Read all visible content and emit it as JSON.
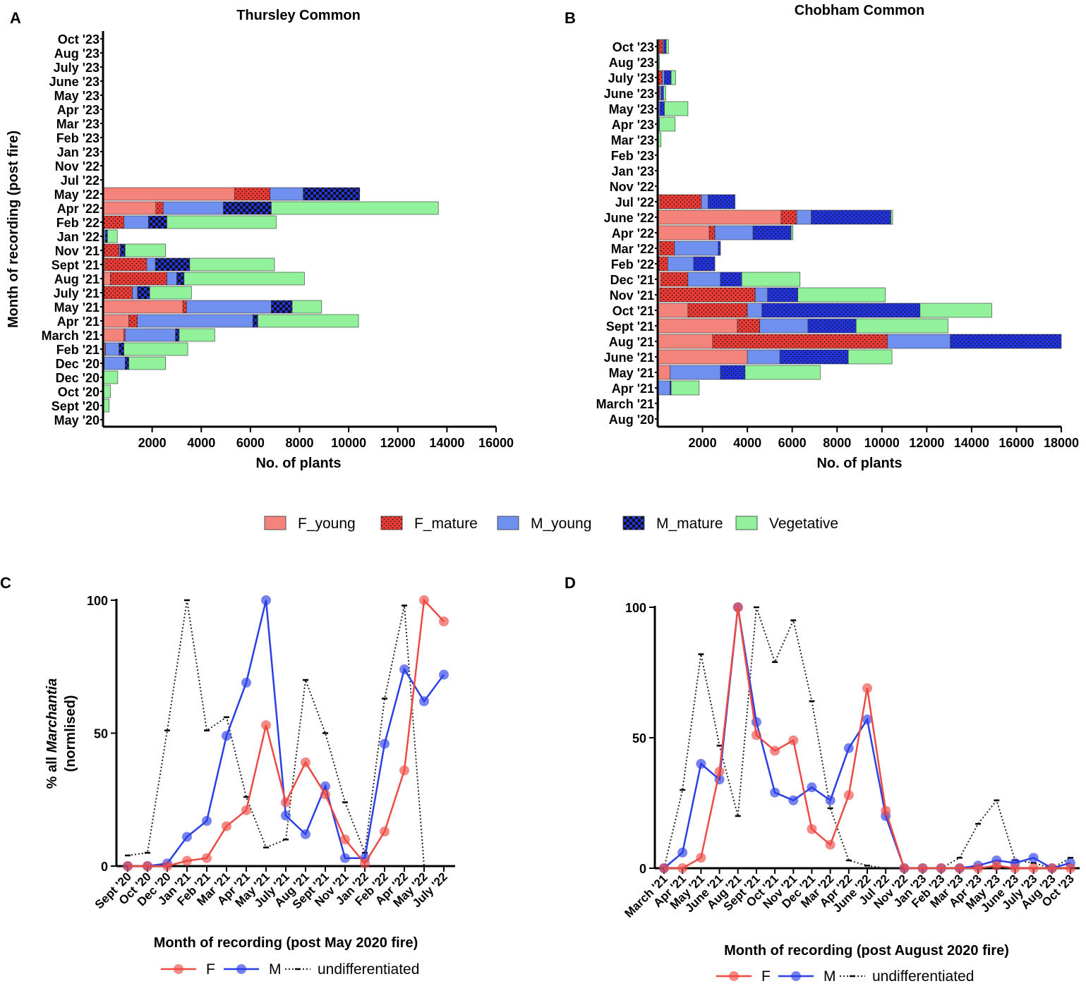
{
  "colors": {
    "F_young": "#f4837c",
    "F_mature": "#ef3b36",
    "M_young": "#7090f0",
    "M_mature": "#2233dd",
    "Vegetative": "#92f29b",
    "F_line": "#ee4a44",
    "M_line": "#2b3fe6",
    "undiff_line": "#222222"
  },
  "legend_bars": [
    "F_young",
    "F_mature",
    "M_young",
    "M_mature",
    "Vegetative"
  ],
  "chart_data": [
    {
      "id": "A",
      "panel_label": "A",
      "type": "bar",
      "orientation": "horizontal",
      "stacked": true,
      "title": "Thursley Common",
      "xlabel": "No. of plants",
      "ylabel": "Month of recording (post fire)",
      "xlim": [
        0,
        16000
      ],
      "xticks": [
        2000,
        4000,
        6000,
        8000,
        10000,
        12000,
        14000,
        16000
      ],
      "categories": [
        "May '20",
        "Sept '20",
        "Oct '20",
        "Dec '20",
        "Dec '20",
        "Feb '21",
        "March '21",
        "Apr '21",
        "May '21",
        "July '21",
        "Aug '21",
        "Sept '21",
        "Nov '21",
        "Jan '22",
        "Feb '22",
        "Apr '22",
        "May '22",
        "Jul '22",
        "Nov '22",
        "Jan '23",
        "Feb '23",
        "Mar '23",
        "Apr '23",
        "May '23",
        "June '23",
        "July '23",
        "Aug '23",
        "Oct '23"
      ],
      "series": [
        {
          "name": "F_young",
          "values": [
            0,
            0,
            0,
            0,
            50,
            80,
            850,
            1050,
            3250,
            50,
            300,
            80,
            50,
            20,
            0,
            2150,
            5350,
            0,
            0,
            0,
            0,
            0,
            0,
            0,
            0,
            0,
            0,
            0
          ]
        },
        {
          "name": "F_mature",
          "values": [
            0,
            0,
            0,
            0,
            0,
            20,
            50,
            350,
            150,
            1150,
            2300,
            1700,
            600,
            0,
            850,
            300,
            1450,
            0,
            0,
            0,
            0,
            0,
            0,
            0,
            0,
            0,
            0,
            0
          ]
        },
        {
          "name": "M_young",
          "values": [
            0,
            0,
            0,
            0,
            850,
            550,
            2050,
            4700,
            3450,
            200,
            400,
            350,
            50,
            80,
            1000,
            2450,
            1350,
            0,
            0,
            0,
            0,
            0,
            0,
            0,
            0,
            0,
            0,
            0
          ]
        },
        {
          "name": "M_mature",
          "values": [
            0,
            0,
            0,
            0,
            150,
            200,
            150,
            200,
            850,
            500,
            300,
            1400,
            200,
            80,
            750,
            1950,
            2300,
            0,
            0,
            0,
            0,
            0,
            0,
            0,
            0,
            0,
            0,
            0
          ]
        },
        {
          "name": "Vegetative",
          "values": [
            0,
            250,
            300,
            600,
            1500,
            2600,
            1450,
            4100,
            1200,
            1700,
            4900,
            3450,
            1650,
            400,
            4450,
            6800,
            0,
            0,
            0,
            0,
            0,
            0,
            0,
            0,
            0,
            0,
            0,
            0
          ]
        }
      ]
    },
    {
      "id": "B",
      "panel_label": "B",
      "type": "bar",
      "orientation": "horizontal",
      "stacked": true,
      "title": "Chobham Common",
      "xlabel": "No. of plants",
      "ylabel": "",
      "xlim": [
        0,
        18000
      ],
      "xticks": [
        2000,
        4000,
        6000,
        8000,
        10000,
        12000,
        14000,
        16000,
        18000
      ],
      "categories": [
        "Aug '20",
        "March '21",
        "Apr '21",
        "May '21",
        "June '21",
        "Aug '21",
        "Sept '21",
        "Oct '21",
        "Nov '21",
        "Dec '21",
        "Feb '22",
        "Mar '22",
        "Apr '22",
        "June '22",
        "Jul '22",
        "Nov '22",
        "Jan '23",
        "Feb '23",
        "Mar '23",
        "Apr '23",
        "May '23",
        "June '23",
        "July '23",
        "Aug '23",
        "Oct '23"
      ],
      "series": [
        {
          "name": "F_young",
          "values": [
            0,
            0,
            0,
            550,
            4000,
            2450,
            3550,
            1350,
            100,
            150,
            50,
            100,
            2300,
            5500,
            100,
            0,
            0,
            0,
            0,
            0,
            0,
            0,
            0,
            0,
            80
          ]
        },
        {
          "name": "F_mature",
          "values": [
            0,
            0,
            0,
            0,
            0,
            7800,
            1000,
            2650,
            4250,
            1200,
            400,
            650,
            250,
            700,
            1850,
            0,
            0,
            0,
            0,
            0,
            0,
            80,
            200,
            0,
            150
          ]
        },
        {
          "name": "M_young",
          "values": [
            0,
            0,
            550,
            2250,
            1450,
            2800,
            2150,
            650,
            550,
            1450,
            1150,
            1950,
            1700,
            650,
            300,
            0,
            0,
            0,
            0,
            80,
            100,
            80,
            100,
            30,
            50
          ]
        },
        {
          "name": "M_mature",
          "values": [
            0,
            50,
            50,
            1100,
            3050,
            4950,
            2150,
            7050,
            1350,
            950,
            950,
            100,
            1700,
            3550,
            1200,
            0,
            0,
            0,
            0,
            0,
            200,
            100,
            300,
            0,
            100
          ]
        },
        {
          "name": "Vegetative",
          "values": [
            0,
            0,
            1250,
            3350,
            1950,
            0,
            4100,
            3200,
            3900,
            2600,
            0,
            0,
            80,
            80,
            0,
            0,
            0,
            0,
            150,
            700,
            1050,
            100,
            200,
            50,
            100
          ]
        }
      ]
    },
    {
      "id": "C",
      "panel_label": "C",
      "type": "line",
      "title": "",
      "xlabel": "Month of recording (post May 2020 fire)",
      "ylabel_prefix": "% all ",
      "ylabel_italic": "Marchantia",
      "ylabel_line2": "(normlised)",
      "ylim": [
        0,
        100
      ],
      "yticks": [
        0,
        50,
        100
      ],
      "x": [
        "Sept '20",
        "Oct '20",
        "Dec '20",
        "Jan '21",
        "Feb '21",
        "Mar '21",
        "Apr '21",
        "May '21",
        "July '21",
        "Aug '21",
        "Sept '21",
        "Nov '21",
        "Jan '22",
        "Feb '22",
        "Apr '22",
        "May '22",
        "July '22"
      ],
      "series": [
        {
          "name": "F",
          "values": [
            0,
            0,
            0,
            2,
            3,
            15,
            21,
            53,
            24,
            39,
            27,
            10,
            1,
            13,
            36,
            100,
            92
          ]
        },
        {
          "name": "M",
          "values": [
            0,
            0,
            1,
            11,
            17,
            49,
            69,
            100,
            19,
            12,
            30,
            3,
            3,
            46,
            74,
            62,
            72
          ]
        },
        {
          "name": "undifferentiated",
          "values": [
            4,
            5,
            51,
            100,
            51,
            56,
            26,
            7,
            10,
            70,
            50,
            24,
            5,
            63,
            98,
            0,
            null
          ]
        }
      ]
    },
    {
      "id": "D",
      "panel_label": "D",
      "type": "line",
      "title": "",
      "xlabel": "Month of recording (post August 2020 fire)",
      "ylim": [
        0,
        100
      ],
      "yticks": [
        0,
        50,
        100
      ],
      "x": [
        "March '21",
        "Apr '21",
        "May '21",
        "June '21",
        "Aug '21",
        "Sept '21",
        "Oct '21",
        "Nov '21",
        "Dec '21",
        "Mar '22",
        "Apr '22",
        "June '22",
        "Jul '22",
        "Nov '22",
        "Jan '23",
        "Feb '23",
        "Mar '23",
        "Apr '23",
        "May '23",
        "June '23",
        "July '23",
        "Aug '23",
        "Oct '23"
      ],
      "series": [
        {
          "name": "F",
          "values": [
            0,
            0,
            4,
            37,
            100,
            51,
            45,
            49,
            15,
            9,
            28,
            69,
            22,
            0,
            0,
            0,
            0,
            0,
            1,
            0,
            0,
            0,
            0
          ]
        },
        {
          "name": "M",
          "values": [
            0,
            6,
            40,
            34,
            100,
            56,
            29,
            26,
            31,
            26,
            46,
            57,
            20,
            0,
            0,
            0,
            0,
            1,
            3,
            2,
            4,
            0,
            2
          ]
        },
        {
          "name": "undifferentiated",
          "values": [
            0,
            30,
            82,
            47,
            20,
            100,
            79,
            95,
            64,
            23,
            3,
            1,
            0,
            0,
            0,
            0,
            4,
            17,
            26,
            3,
            2,
            0,
            4
          ]
        }
      ]
    }
  ],
  "line_legend": [
    "F",
    "M",
    "undifferentiated"
  ]
}
